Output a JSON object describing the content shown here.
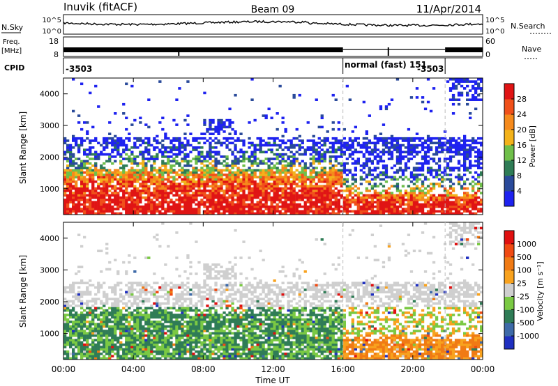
{
  "header": {
    "station": "Inuvik (fitACF)",
    "beam": "Beam 09",
    "date": "11/Apr/2014"
  },
  "top_panels": {
    "nsky_label": "N.Sky",
    "nsky_ticks": [
      "10^5",
      "10^0"
    ],
    "nsearch_label": "N.Search",
    "nsearch_ticks": [
      "10^5",
      "10^0"
    ],
    "freq_label": "Freq.",
    "freq_unit": "[MHz]",
    "freq_ticks": [
      "18",
      "8"
    ],
    "nave_label": "Nave",
    "nave_ticks": [
      "60",
      "0"
    ],
    "cpid_label": "CPID",
    "cpid_segments": [
      {
        "label": "-3503",
        "start_hour": 0,
        "end_hour": 16
      },
      {
        "label": "normal (fast)  151",
        "start_hour": 16,
        "end_hour": 21.85
      },
      {
        "label": "-3503",
        "start_hour": 21.85,
        "end_hour": 24
      }
    ]
  },
  "x_axis": {
    "label": "Time UT",
    "ticks": [
      "00:00",
      "04:00",
      "08:00",
      "12:00",
      "16:00",
      "20:00",
      "00:00"
    ]
  },
  "chart_data": [
    {
      "type": "heatmap",
      "ylabel": "Slant Range [km]",
      "xlim": [
        0,
        24
      ],
      "ylim": [
        180,
        4500
      ],
      "yticks": [
        "1000",
        "2000",
        "3000",
        "4000"
      ],
      "colorbar": {
        "label": "Power [dB]",
        "ticks": [
          "28",
          "24",
          "20",
          "16",
          "12",
          "8",
          "4"
        ],
        "colors": [
          "#1e22f0",
          "#2a4a9a",
          "#2f7c56",
          "#6fbf4a",
          "#f3b21a",
          "#f58a1c",
          "#f0501a",
          "#e01414"
        ]
      }
    },
    {
      "type": "heatmap",
      "ylabel": "Slant Range [km]",
      "xlim": [
        0,
        24
      ],
      "ylim": [
        180,
        4500
      ],
      "yticks": [
        "1000",
        "2000",
        "3000",
        "4000"
      ],
      "colorbar": {
        "label": "Velocity [m s⁻¹]",
        "ticks": [
          "1000",
          "500",
          "100",
          "25",
          "-25",
          "-100",
          "-500",
          "-1000"
        ],
        "colors": [
          "#1f2fc0",
          "#3e6aa8",
          "#2f7c56",
          "#7ac943",
          "#cfcfcf",
          "#f8a21e",
          "#f07a14",
          "#f04a12",
          "#e01010"
        ]
      }
    }
  ]
}
